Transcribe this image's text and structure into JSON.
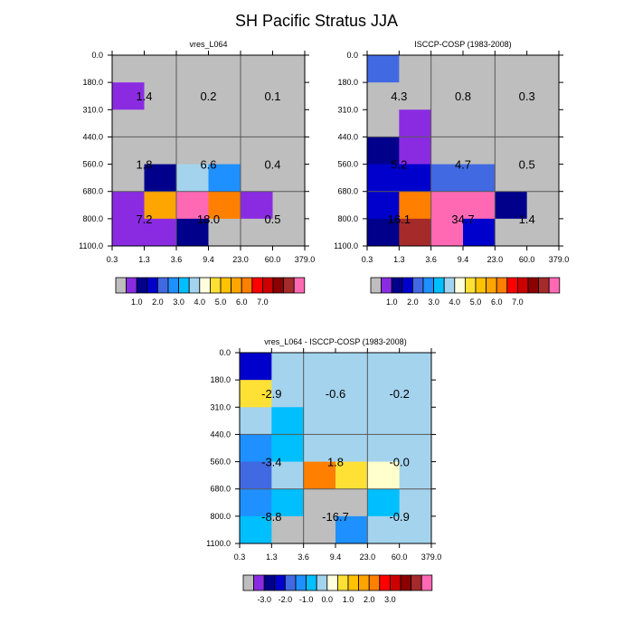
{
  "title": "SH Pacific Stratus JJA",
  "colors": {
    "nodata": "#bebebe",
    "gridline": "#5a5a5a",
    "frame": "#000000"
  },
  "chart_data": [
    {
      "type": "heatmap",
      "title": "vres_L064",
      "x_ticks": [
        "0.3",
        "1.3",
        "3.6",
        "9.4",
        "23.0",
        "60.0",
        "379.0"
      ],
      "y_ticks": [
        "0.0",
        "180.0",
        "310.0",
        "440.0",
        "560.0",
        "680.0",
        "800.0",
        "1100.0"
      ],
      "cells": [
        [
          "#bebebe",
          "#bebebe",
          "#bebebe",
          "#bebebe",
          "#bebebe",
          "#bebebe"
        ],
        [
          "#8a2be2",
          "#bebebe",
          "#bebebe",
          "#bebebe",
          "#bebebe",
          "#bebebe"
        ],
        [
          "#bebebe",
          "#bebebe",
          "#bebebe",
          "#bebebe",
          "#bebebe",
          "#bebebe"
        ],
        [
          "#bebebe",
          "#bebebe",
          "#bebebe",
          "#bebebe",
          "#bebebe",
          "#bebebe"
        ],
        [
          "#bebebe",
          "#00008b",
          "#a4d3ee",
          "#1e90ff",
          "#bebebe",
          "#bebebe"
        ],
        [
          "#8a2be2",
          "#ffa500",
          "#ff69b4",
          "#ff7f00",
          "#8a2be2",
          "#bebebe"
        ],
        [
          "#8a2be2",
          "#8a2be2",
          "#00008b",
          "#bebebe",
          "#bebebe",
          "#bebebe"
        ]
      ],
      "block_values": [
        [
          1.4,
          0.2,
          0.1
        ],
        [
          1.8,
          6.6,
          0.4
        ],
        [
          7.2,
          18.0,
          0.5
        ]
      ],
      "legend": {
        "colors": [
          "#bebebe",
          "#8a2be2",
          "#00008b",
          "#0000cd",
          "#4169e1",
          "#1e90ff",
          "#00bfff",
          "#a4d3ee",
          "#ffffe0",
          "#ffe135",
          "#ffc200",
          "#ffa500",
          "#ff7f00",
          "#ff0000",
          "#cd0000",
          "#8b0000",
          "#a52a2a",
          "#ff69b4"
        ],
        "labels": [
          "1.0",
          "2.0",
          "3.0",
          "4.0",
          "5.0",
          "6.0",
          "7.0"
        ]
      }
    },
    {
      "type": "heatmap",
      "title": "ISCCP-COSP (1983-2008)",
      "x_ticks": [
        "0.3",
        "1.3",
        "3.6",
        "9.4",
        "23.0",
        "60.0",
        "379.0"
      ],
      "y_ticks": [
        "0.0",
        "180.0",
        "310.0",
        "440.0",
        "560.0",
        "680.0",
        "800.0",
        "1100.0"
      ],
      "cells": [
        [
          "#4169e1",
          "#bebebe",
          "#bebebe",
          "#bebebe",
          "#bebebe",
          "#bebebe"
        ],
        [
          "#bebebe",
          "#bebebe",
          "#bebebe",
          "#bebebe",
          "#bebebe",
          "#bebebe"
        ],
        [
          "#bebebe",
          "#8a2be2",
          "#bebebe",
          "#bebebe",
          "#bebebe",
          "#bebebe"
        ],
        [
          "#00008b",
          "#8a2be2",
          "#bebebe",
          "#bebebe",
          "#bebebe",
          "#bebebe"
        ],
        [
          "#0000cd",
          "#0000cd",
          "#4169e1",
          "#4169e1",
          "#bebebe",
          "#bebebe"
        ],
        [
          "#0000cd",
          "#ff7f00",
          "#ff69b4",
          "#ff69b4",
          "#00008b",
          "#bebebe"
        ],
        [
          "#00008b",
          "#a52a2a",
          "#ff69b4",
          "#0000cd",
          "#bebebe",
          "#bebebe"
        ]
      ],
      "block_values": [
        [
          4.3,
          0.8,
          0.3
        ],
        [
          5.2,
          4.7,
          0.5
        ],
        [
          16.1,
          34.7,
          1.4
        ]
      ],
      "legend": {
        "colors": [
          "#bebebe",
          "#8a2be2",
          "#00008b",
          "#0000cd",
          "#4169e1",
          "#1e90ff",
          "#00bfff",
          "#a4d3ee",
          "#ffffe0",
          "#ffe135",
          "#ffc200",
          "#ffa500",
          "#ff7f00",
          "#ff0000",
          "#cd0000",
          "#8b0000",
          "#a52a2a",
          "#ff69b4"
        ],
        "labels": [
          "1.0",
          "2.0",
          "3.0",
          "4.0",
          "5.0",
          "6.0",
          "7.0"
        ]
      }
    },
    {
      "type": "heatmap",
      "title": "vres_L064 - ISCCP-COSP (1983-2008)",
      "x_ticks": [
        "0.3",
        "1.3",
        "3.6",
        "9.4",
        "23.0",
        "60.0",
        "379.0"
      ],
      "y_ticks": [
        "0.0",
        "180.0",
        "310.0",
        "440.0",
        "560.0",
        "680.0",
        "800.0",
        "1100.0"
      ],
      "cells": [
        [
          "#0000cd",
          "#a4d3ee",
          "#a4d3ee",
          "#a4d3ee",
          "#a4d3ee",
          "#a4d3ee"
        ],
        [
          "#ffe135",
          "#a4d3ee",
          "#a4d3ee",
          "#a4d3ee",
          "#a4d3ee",
          "#a4d3ee"
        ],
        [
          "#a4d3ee",
          "#00bfff",
          "#a4d3ee",
          "#a4d3ee",
          "#a4d3ee",
          "#a4d3ee"
        ],
        [
          "#1e90ff",
          "#00bfff",
          "#a4d3ee",
          "#a4d3ee",
          "#a4d3ee",
          "#a4d3ee"
        ],
        [
          "#4169e1",
          "#a4d3ee",
          "#ff7f00",
          "#ffe135",
          "#ffffcc",
          "#a4d3ee"
        ],
        [
          "#1e90ff",
          "#00bfff",
          "#bebebe",
          "#bebebe",
          "#00bfff",
          "#a4d3ee"
        ],
        [
          "#00bfff",
          "#bebebe",
          "#bebebe",
          "#1e90ff",
          "#a4d3ee",
          "#a4d3ee"
        ]
      ],
      "block_values": [
        [
          -2.9,
          -0.6,
          -0.2
        ],
        [
          -3.4,
          1.8,
          -0.0
        ],
        [
          -8.8,
          -16.7,
          -0.9
        ]
      ],
      "legend": {
        "colors": [
          "#bebebe",
          "#8a2be2",
          "#00008b",
          "#0000cd",
          "#4169e1",
          "#1e90ff",
          "#00bfff",
          "#a4d3ee",
          "#ffffe0",
          "#ffe135",
          "#ffc200",
          "#ffa500",
          "#ff7f00",
          "#ff0000",
          "#cd0000",
          "#8b0000",
          "#a52a2a",
          "#ff69b4"
        ],
        "labels": [
          "-3.0",
          "-2.0",
          "-1.0",
          "0.0",
          "1.0",
          "2.0",
          "3.0"
        ]
      }
    }
  ]
}
